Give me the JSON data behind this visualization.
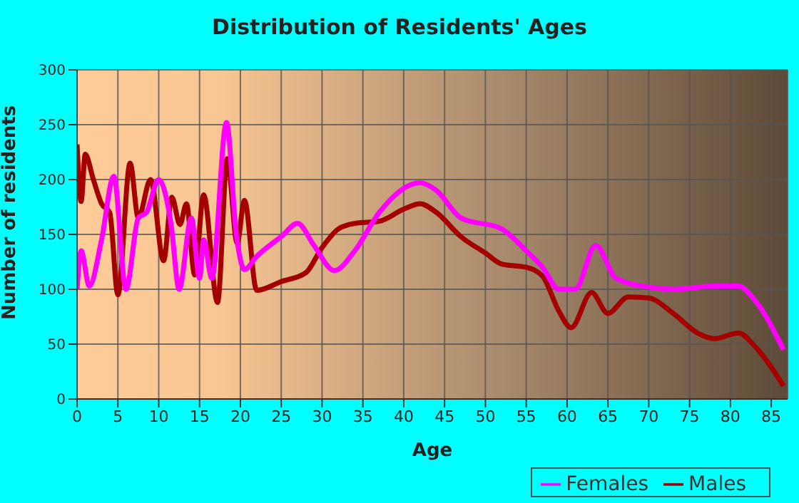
{
  "chart_data": {
    "type": "line",
    "title": "Distribution of Residents' Ages",
    "xlabel": "Age",
    "ylabel": "Number of residents",
    "xlim": [
      0,
      87
    ],
    "xticks": [
      0,
      5,
      10,
      15,
      20,
      25,
      30,
      35,
      40,
      45,
      50,
      55,
      60,
      65,
      70,
      75,
      80,
      85
    ],
    "ylim": [
      0,
      300
    ],
    "yticks": [
      0,
      50,
      100,
      150,
      200,
      250,
      300
    ],
    "grid": true,
    "legend": "bottom",
    "marker": "none",
    "series": [
      {
        "name": "Males",
        "color": "#a50000",
        "x": [
          0,
          0.5,
          1,
          2,
          3,
          4,
          5,
          6.5,
          7.5,
          9,
          10.6,
          11.6,
          12.6,
          13.4,
          14.4,
          15.5,
          17.2,
          18.4,
          19.6,
          20.5,
          22,
          25,
          28,
          30,
          32,
          34,
          37,
          40,
          42,
          44,
          47,
          50,
          52,
          55,
          57,
          59,
          60.5,
          63,
          65,
          67.5,
          70,
          73,
          76,
          78,
          81,
          83,
          86.5
        ],
        "values": [
          232,
          180,
          223,
          200,
          178,
          170,
          95,
          215,
          165,
          200,
          126,
          184,
          159,
          178,
          113,
          186,
          88,
          219,
          142,
          181,
          99,
          107,
          115,
          138,
          155,
          160,
          162,
          173,
          178,
          170,
          148,
          133,
          123,
          120,
          112,
          80,
          65,
          97,
          78,
          93,
          92,
          78,
          60,
          55,
          60,
          48,
          12
        ]
      },
      {
        "name": "Females",
        "color": "#ff00ff",
        "x": [
          0,
          0.5,
          1.5,
          3,
          4.5,
          6,
          7.5,
          8.5,
          10,
          11.5,
          12.5,
          14,
          15,
          15.5,
          16.5,
          18.3,
          19.5,
          20.5,
          22,
          25,
          27,
          29,
          31.5,
          34,
          37,
          42,
          44,
          47,
          52,
          55,
          57,
          59,
          61,
          63.5,
          66,
          70,
          73,
          78,
          81,
          83,
          86.5
        ],
        "values": [
          100,
          135,
          103,
          145,
          203,
          100,
          165,
          170,
          200,
          160,
          100,
          165,
          110,
          145,
          110,
          252,
          150,
          118,
          130,
          148,
          160,
          140,
          117,
          135,
          170,
          197,
          190,
          165,
          155,
          135,
          120,
          100,
          100,
          140,
          110,
          102,
          100,
          103,
          103,
          90,
          45
        ]
      }
    ]
  }
}
